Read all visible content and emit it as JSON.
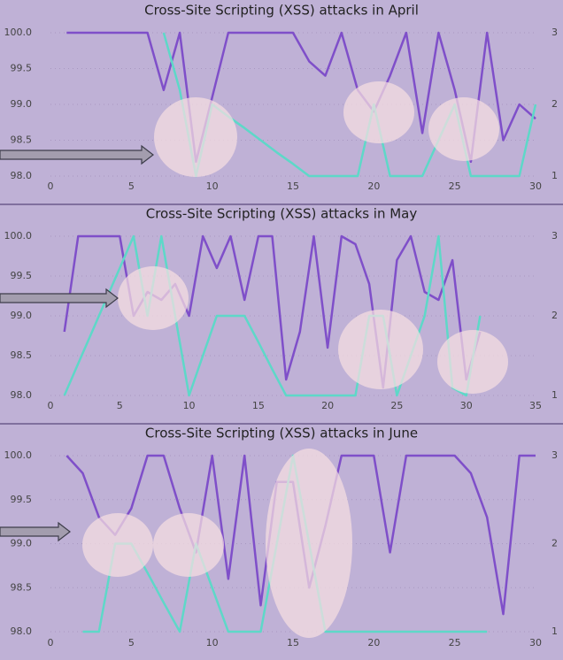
{
  "chart_data": [
    {
      "type": "line",
      "title": "Cross-Site Scripting (XSS) attacks in April",
      "x": [
        1,
        2,
        3,
        4,
        5,
        6,
        7,
        8,
        9,
        10,
        11,
        12,
        13,
        14,
        15,
        16,
        17,
        18,
        19,
        20,
        21,
        22,
        23,
        24,
        25,
        26,
        27,
        28,
        29,
        30
      ],
      "series": [
        {
          "color": "#7f4fc9",
          "values": [
            100,
            100,
            100,
            100,
            100,
            100,
            99.2,
            100,
            98.2,
            99.1,
            100,
            100,
            100,
            100,
            100,
            99.6,
            99.4,
            100,
            99.2,
            98.9,
            99.4,
            100,
            98.6,
            100,
            99.2,
            98.2,
            100,
            98.5,
            99,
            98.8
          ]
        },
        {
          "color": "#5ed8c8",
          "axis": "y2",
          "values": [
            null,
            null,
            null,
            null,
            null,
            null,
            3,
            2.2,
            1,
            2,
            1.83,
            1.67,
            1.5,
            1.33,
            1.17,
            1,
            1,
            1,
            1,
            2,
            1,
            1,
            1,
            1.5,
            2,
            1,
            1,
            1,
            1,
            2
          ]
        }
      ],
      "xlim": [
        0,
        30
      ],
      "xticks": [
        0,
        5,
        10,
        15,
        20,
        25,
        30
      ],
      "ylim": [
        98,
        100
      ],
      "yticks": [
        {
          "value": 98,
          "label": "98.0"
        },
        98.5,
        {
          "value": 99,
          "label": "99.0"
        },
        99.5,
        {
          "value": 100,
          "label": "100.0"
        }
      ],
      "y2lim": [
        1,
        3
      ],
      "y2ticks": [
        1,
        2,
        3
      ],
      "grid": true
    },
    {
      "type": "line",
      "title": "Cross-Site Scripting (XSS) attacks in May",
      "x": [
        1,
        2,
        3,
        4,
        5,
        6,
        7,
        8,
        9,
        10,
        11,
        12,
        13,
        14,
        15,
        16,
        17,
        18,
        19,
        20,
        21,
        22,
        23,
        24,
        25,
        26,
        27,
        28,
        29,
        30,
        31
      ],
      "series": [
        {
          "color": "#7f4fc9",
          "values": [
            98.8,
            100,
            100,
            100,
            100,
            99,
            99.3,
            99.2,
            99.4,
            99,
            100,
            99.6,
            100,
            99.2,
            100,
            100,
            98.2,
            98.8,
            100,
            98.6,
            100,
            99.9,
            99.4,
            98.1,
            99.7,
            100,
            99.3,
            99.2,
            99.7,
            98.2,
            98.8
          ]
        },
        {
          "color": "#5ed8c8",
          "axis": "y2",
          "values": [
            1,
            1.4,
            1.8,
            2.2,
            2.6,
            3,
            2,
            3,
            2,
            1,
            1.5,
            2,
            2,
            2,
            1.67,
            1.33,
            1,
            1,
            1,
            1,
            1,
            1,
            2,
            2,
            1,
            1.5,
            2,
            3,
            1.1,
            1,
            2
          ]
        }
      ],
      "xlim": [
        0,
        35
      ],
      "xticks": [
        0,
        5,
        10,
        15,
        20,
        25,
        30,
        35
      ],
      "ylim": [
        98,
        100
      ],
      "yticks": [
        {
          "value": 98,
          "label": "98.0"
        },
        98.5,
        {
          "value": 99,
          "label": "99.0"
        },
        99.5,
        {
          "value": 100,
          "label": "100.0"
        }
      ],
      "y2lim": [
        1,
        3
      ],
      "y2ticks": [
        1,
        2,
        3
      ],
      "grid": true
    },
    {
      "type": "line",
      "title": "Cross-Site Scripting (XSS) attacks in June",
      "x": [
        1,
        2,
        3,
        4,
        5,
        6,
        7,
        8,
        9,
        10,
        11,
        12,
        13,
        14,
        15,
        16,
        17,
        18,
        19,
        20,
        21,
        22,
        23,
        24,
        25,
        26,
        27,
        28,
        29,
        30
      ],
      "series": [
        {
          "color": "#7f4fc9",
          "values": [
            100,
            99.8,
            99.3,
            99.1,
            99.4,
            100,
            100,
            99.4,
            98.9,
            100,
            98.6,
            100,
            98.3,
            99.7,
            99.7,
            98.5,
            99.2,
            100,
            100,
            100,
            98.9,
            100,
            100,
            100,
            100,
            99.8,
            99.3,
            98.2,
            100,
            100
          ]
        },
        {
          "color": "#5ed8c8",
          "axis": "y2",
          "values": [
            null,
            1,
            1,
            2,
            2,
            1.67,
            1.33,
            1,
            2,
            1.5,
            1,
            1,
            1,
            2,
            3,
            2,
            1,
            1,
            1,
            1,
            1,
            1,
            1,
            1,
            1,
            1,
            1,
            null,
            null,
            null
          ]
        }
      ],
      "xlim": [
        0,
        30
      ],
      "xticks": [
        0,
        5,
        10,
        15,
        20,
        25,
        30
      ],
      "ylim": [
        98,
        100
      ],
      "yticks": [
        {
          "value": 98,
          "label": "98.0"
        },
        98.5,
        {
          "value": 99,
          "label": "99.0"
        },
        99.5,
        {
          "value": 100,
          "label": "100.0"
        }
      ],
      "y2lim": [
        1,
        3
      ],
      "y2ticks": [
        1,
        2,
        3
      ],
      "grid": true
    }
  ]
}
